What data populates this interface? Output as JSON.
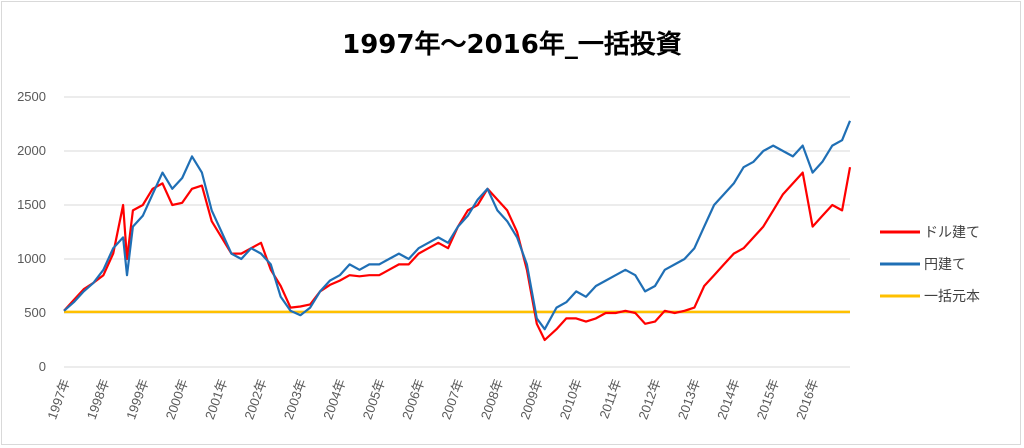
{
  "chart_data": {
    "type": "line",
    "title": "1997年～2016年_一括投資",
    "xlabel": "",
    "ylabel": "",
    "ylim": [
      0,
      2500
    ],
    "yticks": [
      "0",
      "500",
      "1000",
      "1500",
      "2000",
      "2500"
    ],
    "grid": true,
    "legend_position": "right",
    "x_categories": [
      "1997年",
      "1998年",
      "1999年",
      "2000年",
      "2001年",
      "2002年",
      "2003年",
      "2004年",
      "2005年",
      "2006年",
      "2007年",
      "2008年",
      "2009年",
      "2010年",
      "2011年",
      "2012年",
      "2013年",
      "2014年",
      "2015年",
      "2016年"
    ],
    "series": [
      {
        "name": "ドル建て",
        "color": "#ff0000",
        "x": [
          1997.0,
          1997.25,
          1997.5,
          1997.75,
          1998.0,
          1998.25,
          1998.5,
          1998.6,
          1998.75,
          1999.0,
          1999.25,
          1999.5,
          1999.75,
          2000.0,
          2000.25,
          2000.5,
          2000.75,
          2001.0,
          2001.25,
          2001.5,
          2001.75,
          2002.0,
          2002.25,
          2002.5,
          2002.75,
          2003.0,
          2003.25,
          2003.5,
          2003.75,
          2004.0,
          2004.25,
          2004.5,
          2004.75,
          2005.0,
          2005.25,
          2005.5,
          2005.75,
          2006.0,
          2006.25,
          2006.5,
          2006.75,
          2007.0,
          2007.25,
          2007.5,
          2007.75,
          2008.0,
          2008.25,
          2008.5,
          2008.75,
          2009.0,
          2009.2,
          2009.5,
          2009.75,
          2010.0,
          2010.25,
          2010.5,
          2010.75,
          2011.0,
          2011.25,
          2011.5,
          2011.75,
          2012.0,
          2012.25,
          2012.5,
          2012.75,
          2013.0,
          2013.25,
          2013.5,
          2013.75,
          2014.0,
          2014.25,
          2014.5,
          2014.75,
          2015.0,
          2015.25,
          2015.5,
          2015.75,
          2016.0,
          2016.25,
          2016.5,
          2016.75,
          2016.95
        ],
        "values": [
          520,
          620,
          720,
          780,
          850,
          1050,
          1500,
          1000,
          1450,
          1500,
          1650,
          1700,
          1500,
          1520,
          1650,
          1680,
          1350,
          1200,
          1050,
          1050,
          1100,
          1150,
          900,
          750,
          550,
          560,
          580,
          700,
          760,
          800,
          850,
          840,
          850,
          850,
          900,
          950,
          950,
          1050,
          1100,
          1150,
          1100,
          1300,
          1450,
          1500,
          1650,
          1550,
          1450,
          1250,
          900,
          400,
          250,
          350,
          450,
          450,
          420,
          450,
          500,
          500,
          520,
          500,
          400,
          420,
          520,
          500,
          520,
          550,
          750,
          850,
          950,
          1050,
          1100,
          1200,
          1300,
          1450,
          1600,
          1700,
          1800,
          1300,
          1400,
          1500,
          1450,
          1850
        ]
      },
      {
        "name": "円建て",
        "color": "#1f6fb5",
        "x": [
          1997.0,
          1997.25,
          1997.5,
          1997.75,
          1998.0,
          1998.25,
          1998.5,
          1998.6,
          1998.75,
          1999.0,
          1999.25,
          1999.5,
          1999.75,
          2000.0,
          2000.25,
          2000.5,
          2000.75,
          2001.0,
          2001.25,
          2001.5,
          2001.75,
          2002.0,
          2002.25,
          2002.5,
          2002.75,
          2003.0,
          2003.25,
          2003.5,
          2003.75,
          2004.0,
          2004.25,
          2004.5,
          2004.75,
          2005.0,
          2005.25,
          2005.5,
          2005.75,
          2006.0,
          2006.25,
          2006.5,
          2006.75,
          2007.0,
          2007.25,
          2007.5,
          2007.75,
          2008.0,
          2008.25,
          2008.5,
          2008.75,
          2009.0,
          2009.2,
          2009.5,
          2009.75,
          2010.0,
          2010.25,
          2010.5,
          2010.75,
          2011.0,
          2011.25,
          2011.5,
          2011.75,
          2012.0,
          2012.25,
          2012.5,
          2012.75,
          2013.0,
          2013.25,
          2013.5,
          2013.75,
          2014.0,
          2014.25,
          2014.5,
          2014.75,
          2015.0,
          2015.25,
          2015.5,
          2015.75,
          2016.0,
          2016.25,
          2016.5,
          2016.75,
          2016.95
        ],
        "values": [
          520,
          600,
          700,
          780,
          900,
          1100,
          1200,
          850,
          1300,
          1400,
          1600,
          1800,
          1650,
          1750,
          1950,
          1800,
          1450,
          1250,
          1050,
          1000,
          1100,
          1050,
          950,
          650,
          520,
          480,
          550,
          700,
          800,
          850,
          950,
          900,
          950,
          950,
          1000,
          1050,
          1000,
          1100,
          1150,
          1200,
          1150,
          1300,
          1400,
          1550,
          1650,
          1450,
          1350,
          1200,
          950,
          450,
          350,
          550,
          600,
          700,
          650,
          750,
          800,
          850,
          900,
          850,
          700,
          750,
          900,
          950,
          1000,
          1100,
          1300,
          1500,
          1600,
          1700,
          1850,
          1900,
          2000,
          2050,
          2000,
          1950,
          2050,
          1800,
          1900,
          2050,
          2100,
          2280
        ]
      },
      {
        "name": "一括元本",
        "color": "#ffc000",
        "x": [
          1997.0,
          2016.95
        ],
        "values": [
          510,
          510
        ]
      }
    ]
  }
}
